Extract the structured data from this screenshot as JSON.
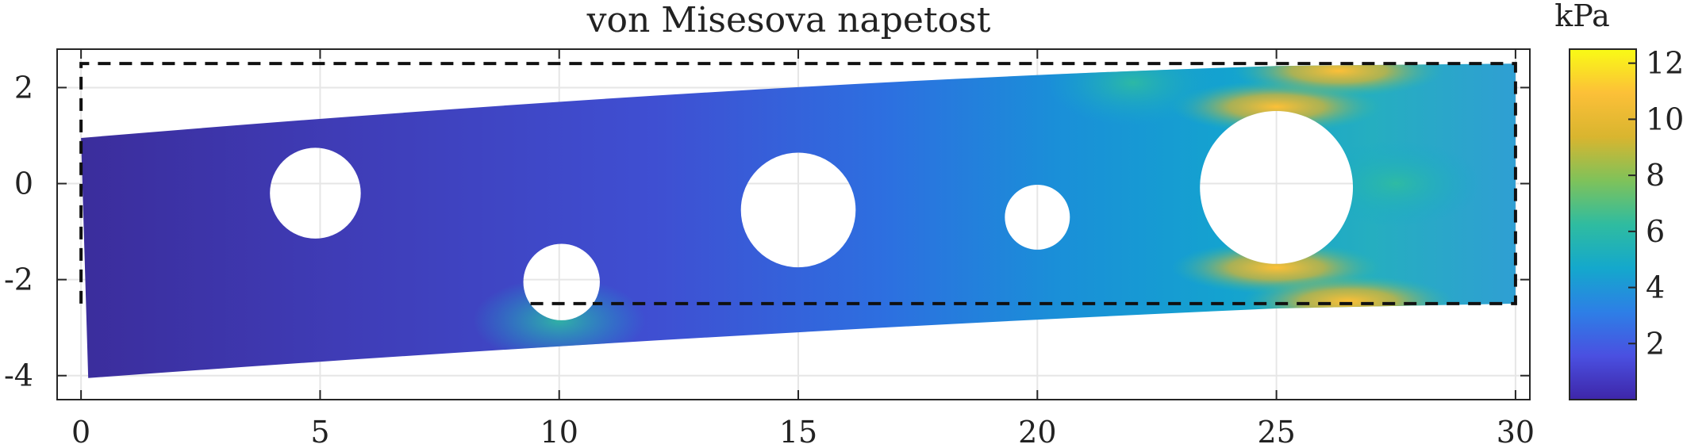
{
  "chart_data": {
    "type": "heatmap",
    "title": "von Misesova napetost",
    "xlabel": "",
    "ylabel": "",
    "xlim": [
      -0.5,
      30.3
    ],
    "ylim": [
      -4.5,
      2.8
    ],
    "x_ticks": [
      0,
      5,
      10,
      15,
      20,
      25,
      30
    ],
    "y_ticks": [
      2,
      0,
      -2,
      -4
    ],
    "grid": true,
    "deformed_outline": [
      [
        0,
        0.95
      ],
      [
        25,
        2.45
      ],
      [
        30,
        2.5
      ],
      [
        30,
        -2.5
      ],
      [
        25,
        -2.6
      ],
      [
        0.15,
        -4.05
      ]
    ],
    "reference_outline": [
      [
        0,
        2.5
      ],
      [
        30,
        2.5
      ],
      [
        30,
        -2.5
      ],
      [
        10.7,
        -2.5
      ],
      [
        9.4,
        -2.5
      ],
      [
        0,
        -2.5
      ]
    ],
    "holes": [
      {
        "cx": 4.9,
        "cy": -0.2,
        "r": 0.95
      },
      {
        "cx": 10.05,
        "cy": -2.05,
        "r": 0.8
      },
      {
        "cx": 15.0,
        "cy": -0.55,
        "r": 1.2
      },
      {
        "cx": 20.0,
        "cy": -0.7,
        "r": 0.68
      },
      {
        "cx": 25.0,
        "cy": -0.08,
        "r": 1.6
      }
    ],
    "stress_hotspots": [
      {
        "x": 25.0,
        "y": 1.6,
        "value": 11.5
      },
      {
        "x": 25.0,
        "y": -1.75,
        "value": 11.0
      },
      {
        "x": 26.3,
        "y": 2.35,
        "value": 11.0
      },
      {
        "x": 26.5,
        "y": -2.45,
        "value": 11.5
      },
      {
        "x": 27.5,
        "y": 0.0,
        "value": 5.5
      },
      {
        "x": 22.0,
        "y": 2.1,
        "value": 4.5
      },
      {
        "x": 10.0,
        "y": -2.85,
        "value": 5.5
      }
    ],
    "colorbar": {
      "label": "kPa",
      "range": [
        0,
        12.5
      ],
      "ticks": [
        2,
        4,
        6,
        8,
        10,
        12
      ],
      "colormap": "parula",
      "colors": [
        "#3e26a8",
        "#4a50e1",
        "#2d7fe6",
        "#14a8cc",
        "#2fbca0",
        "#7fc25a",
        "#d9b52f",
        "#fcc038",
        "#f9fb15"
      ]
    }
  }
}
